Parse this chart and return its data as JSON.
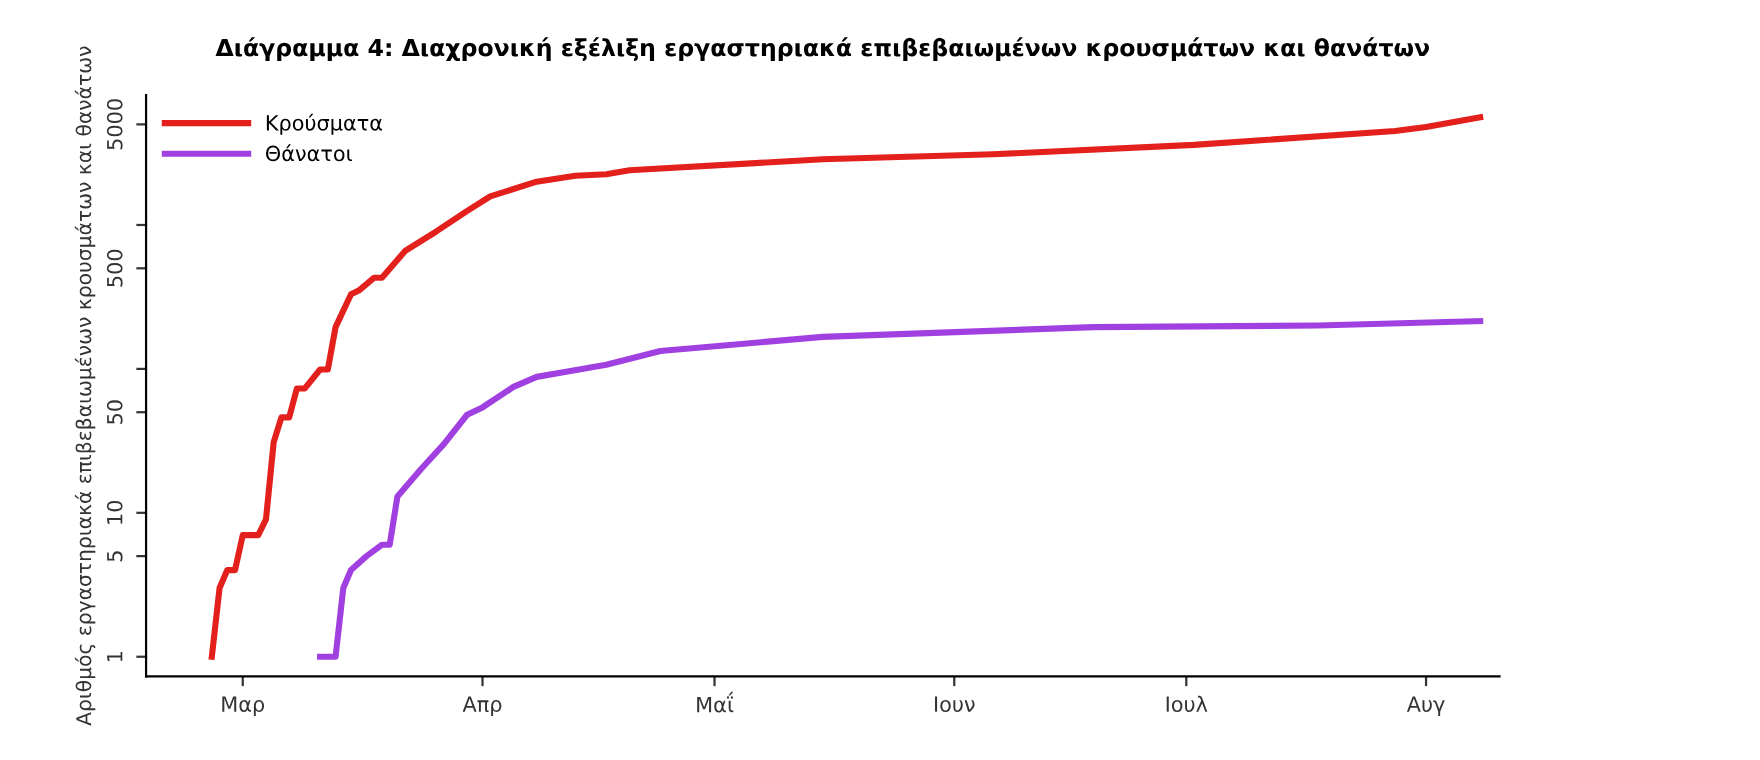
{
  "chart_data": {
    "type": "line",
    "title": "Διάγραμμα 4: Διαχρονική εξέλιξη εργαστηριακά επιβεβαιωμένων κρουσμάτων και θανάτων",
    "ylabel": "Αριθμός εργαστηριακά επιβεβαιωμένων κρουσμάτων και θανάτων",
    "log": "y",
    "grid": false,
    "legend": "top left",
    "marker": "none",
    "line_style": "solid",
    "ylim": [
      0.73,
      8000
    ],
    "yticks": [
      1,
      5,
      10,
      50,
      {
        "value": 100,
        "label": null
      },
      500,
      {
        "value": 1000,
        "label": null
      },
      5000
    ],
    "categories": [
      null,
      null,
      null,
      null,
      null,
      null,
      null,
      null,
      null,
      null,
      null,
      null,
      "Μαρ",
      null,
      null,
      null,
      null,
      null,
      null,
      null,
      null,
      null,
      null,
      null,
      null,
      null,
      null,
      null,
      null,
      null,
      null,
      null,
      null,
      null,
      null,
      null,
      null,
      null,
      null,
      null,
      null,
      null,
      null,
      "Απρ",
      null,
      null,
      null,
      null,
      null,
      null,
      null,
      null,
      null,
      null,
      null,
      null,
      null,
      null,
      null,
      null,
      null,
      null,
      null,
      null,
      null,
      null,
      null,
      null,
      null,
      null,
      null,
      null,
      null,
      "Μαΐ",
      null,
      null,
      null,
      null,
      null,
      null,
      null,
      null,
      null,
      null,
      null,
      null,
      null,
      null,
      null,
      null,
      null,
      null,
      null,
      null,
      null,
      null,
      null,
      null,
      null,
      null,
      null,
      null,
      null,
      null,
      "Ιουν",
      null,
      null,
      null,
      null,
      null,
      null,
      null,
      null,
      null,
      null,
      null,
      null,
      null,
      null,
      null,
      null,
      null,
      null,
      null,
      null,
      null,
      null,
      null,
      null,
      null,
      null,
      null,
      null,
      null,
      "Ιουλ",
      null,
      null,
      null,
      null,
      null,
      null,
      null,
      null,
      null,
      null,
      null,
      null,
      null,
      null,
      null,
      null,
      null,
      null,
      null,
      null,
      null,
      null,
      null,
      null,
      null,
      null,
      null,
      null,
      null,
      null,
      "Αυγ",
      null,
      null,
      null,
      null,
      null,
      null,
      null,
      null,
      null
    ],
    "series": [
      {
        "name": "Κρούσματα",
        "color": "#e3201c",
        "values": [
          null,
          null,
          null,
          null,
          null,
          null,
          null,
          null,
          1,
          3,
          4,
          4,
          7,
          null,
          7,
          9,
          31,
          46,
          46,
          73,
          73,
          null,
          99,
          99,
          195,
          null,
          330,
          350,
          null,
          430,
          430,
          null,
          null,
          660,
          null,
          null,
          null,
          900,
          null,
          null,
          null,
          1250,
          null,
          null,
          1580,
          null,
          null,
          null,
          null,
          null,
          2000,
          null,
          null,
          null,
          null,
          2200,
          null,
          null,
          null,
          2250,
          null,
          null,
          2400,
          null,
          null,
          null,
          null,
          null,
          null,
          null,
          null,
          null,
          null,
          null,
          null,
          null,
          null,
          null,
          null,
          null,
          null,
          null,
          null,
          null,
          null,
          null,
          null,
          2860,
          null,
          null,
          null,
          null,
          null,
          null,
          null,
          null,
          null,
          null,
          null,
          null,
          null,
          null,
          null,
          null,
          null,
          null,
          null,
          null,
          null,
          3100,
          null,
          null,
          null,
          null,
          null,
          null,
          null,
          null,
          null,
          null,
          null,
          null,
          null,
          null,
          null,
          null,
          null,
          null,
          null,
          null,
          null,
          null,
          null,
          null,
          null,
          3600,
          null,
          null,
          null,
          null,
          null,
          null,
          null,
          null,
          null,
          null,
          null,
          null,
          null,
          null,
          null,
          null,
          null,
          null,
          null,
          null,
          null,
          null,
          null,
          null,
          null,
          4500,
          null,
          null,
          null,
          4800,
          null,
          null,
          null,
          null,
          null,
          null,
          5600,
          null,
          null
        ]
      },
      {
        "name": "Θάνατοι",
        "color": "#a040e0",
        "values": [
          null,
          null,
          null,
          null,
          null,
          null,
          null,
          null,
          null,
          null,
          null,
          null,
          null,
          null,
          null,
          null,
          null,
          null,
          null,
          null,
          null,
          null,
          1,
          null,
          1,
          3,
          4,
          null,
          5,
          null,
          6,
          6,
          13,
          null,
          null,
          20,
          null,
          null,
          30,
          null,
          null,
          48,
          null,
          54,
          null,
          null,
          null,
          75,
          null,
          null,
          88,
          null,
          null,
          null,
          96,
          null,
          null,
          null,
          null,
          107,
          null,
          null,
          null,
          null,
          null,
          null,
          133,
          null,
          null,
          null,
          null,
          null,
          null,
          null,
          null,
          null,
          null,
          null,
          null,
          null,
          null,
          null,
          null,
          null,
          null,
          null,
          null,
          167,
          null,
          null,
          null,
          null,
          null,
          null,
          null,
          null,
          null,
          null,
          null,
          null,
          null,
          null,
          null,
          null,
          null,
          null,
          null,
          null,
          null,
          null,
          null,
          null,
          null,
          null,
          null,
          null,
          null,
          null,
          null,
          null,
          null,
          null,
          195,
          null,
          null,
          null,
          null,
          null,
          null,
          null,
          null,
          null,
          null,
          null,
          null,
          null,
          null,
          null,
          null,
          null,
          null,
          null,
          null,
          null,
          null,
          null,
          null,
          null,
          null,
          null,
          null,
          200,
          null,
          null,
          null,
          null,
          null,
          null,
          null,
          null,
          null,
          null,
          null,
          null,
          null,
          null,
          null,
          null,
          null,
          null,
          null,
          null,
          215,
          null,
          null
        ]
      }
    ]
  }
}
